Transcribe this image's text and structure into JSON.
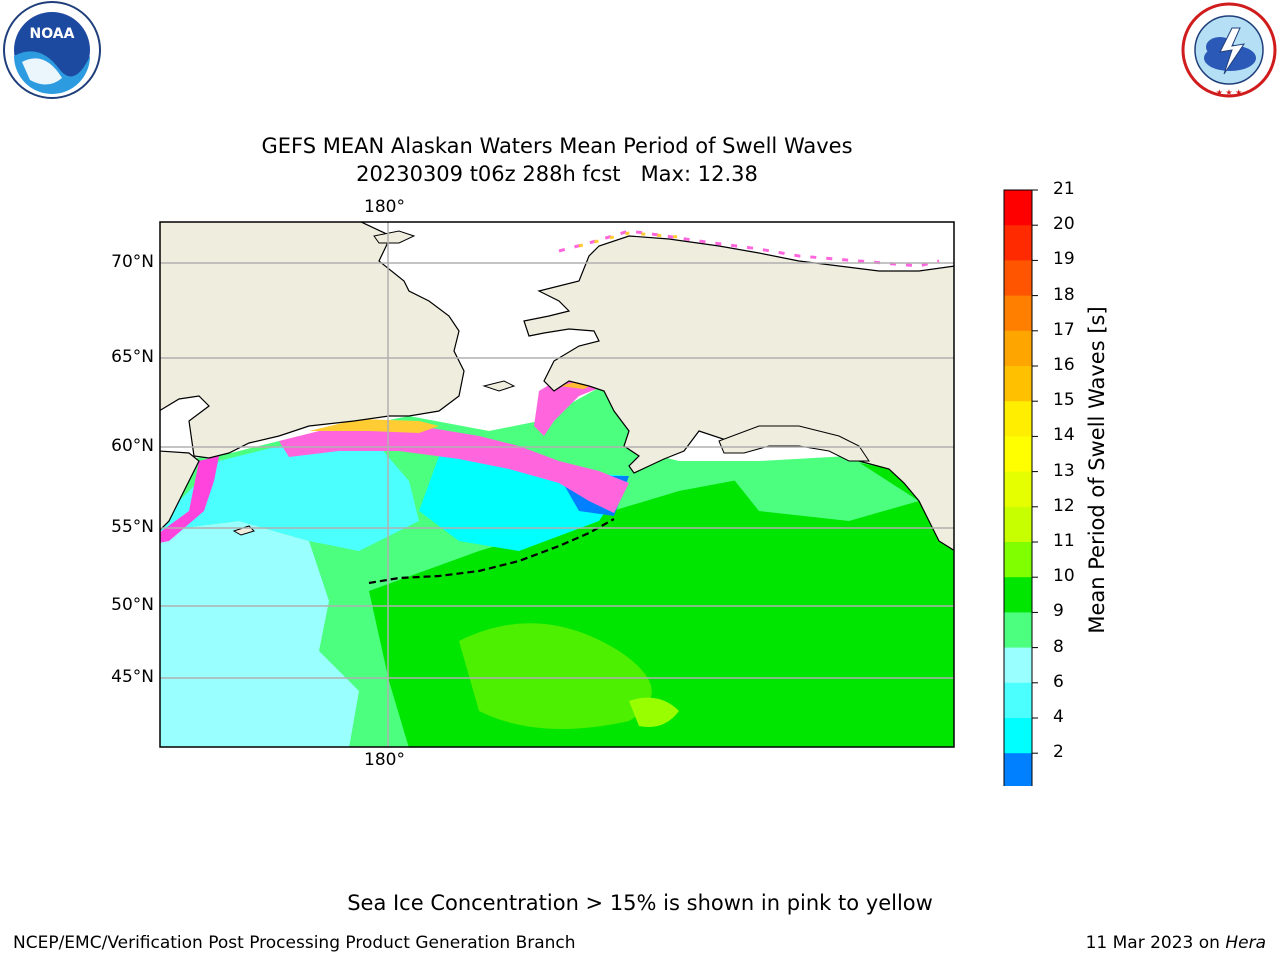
{
  "logos": {
    "noaa": {
      "text": "NOAA",
      "ring_text": "NATIONAL OCEANIC AND ATMOSPHERIC ADMINISTRATION · U.S. DEPARTMENT OF COMMERCE"
    },
    "nws": {
      "ring_text": "NATIONAL WEATHER SERVICE"
    }
  },
  "title": {
    "line1": "GEFS MEAN Alaskan Waters Mean Period of Swell Waves",
    "line2": "20230309 t06z 288h fcst   Max: 12.38"
  },
  "map": {
    "lon_labels": {
      "top": "180°",
      "bottom": "180°"
    },
    "lat_labels": [
      "70°N",
      "65°N",
      "60°N",
      "55°N",
      "50°N",
      "45°N"
    ],
    "colors": {
      "land": "#efedde",
      "grid": "#b0b0b0",
      "sea_ice_no_data": "#ffffff"
    },
    "palette": [
      "#00ffff",
      "#4cffff",
      "#99ffff",
      "#4cff7f",
      "#00e600",
      "#4cf000",
      "#99ff00"
    ]
  },
  "colorbar": {
    "label": "Mean Period of Swell Waves [s]",
    "ticks": [
      "21",
      "20",
      "19",
      "18",
      "17",
      "16",
      "15",
      "14",
      "13",
      "12",
      "11",
      "10",
      "9",
      "8",
      "6",
      "4",
      "2"
    ],
    "colors_top_to_bottom": [
      "#ff0000",
      "#ff2a00",
      "#ff5500",
      "#ff7f00",
      "#ffa500",
      "#ffc000",
      "#ffee00",
      "#ffff00",
      "#e6ff00",
      "#c8ff00",
      "#7fff00",
      "#00e600",
      "#4cff7f",
      "#99ffff",
      "#4cffff",
      "#00ffff",
      "#0080ff"
    ],
    "extend_color": "#0000ff"
  },
  "footer": {
    "note": "Sea Ice Concentration > 15% is shown in pink to yellow",
    "left": "NCEP/EMC/Verification Post Processing Product Generation Branch",
    "date": "11 Mar 2023 on ",
    "machine": "Hera"
  }
}
